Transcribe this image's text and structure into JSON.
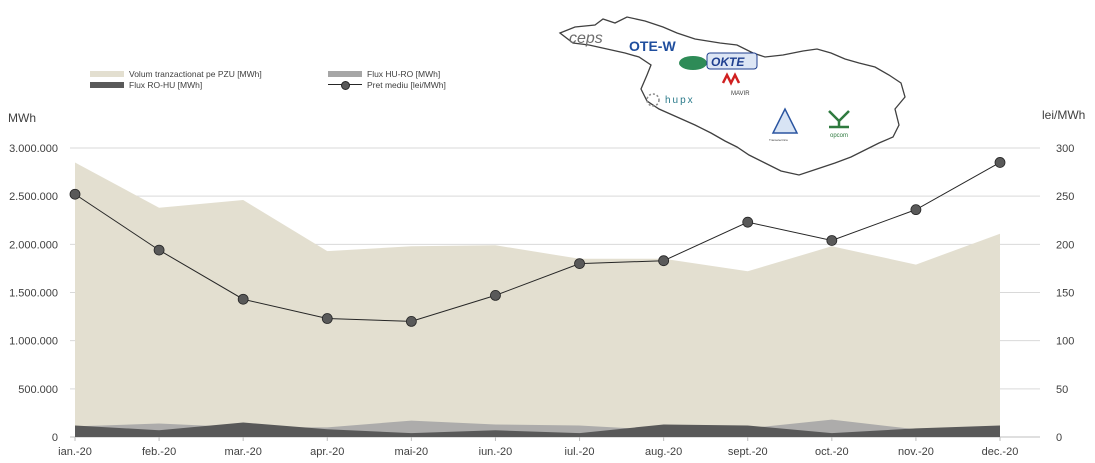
{
  "chart_data": {
    "type": "area",
    "categories": [
      "ian.-20",
      "feb.-20",
      "mar.-20",
      "apr.-20",
      "mai-20",
      "iun.-20",
      "iul.-20",
      "aug.-20",
      "sept.-20",
      "oct.-20",
      "nov.-20",
      "dec.-20"
    ],
    "series": [
      {
        "name": "Volum tranzactionat pe PZU [MWh]",
        "type": "area",
        "axis": "left",
        "color": "#e3dfd0",
        "values": [
          2850000,
          2380000,
          2460000,
          1930000,
          1980000,
          1990000,
          1850000,
          1850000,
          1720000,
          1980000,
          1790000,
          2110000
        ]
      },
      {
        "name": "Flux HU-RO [MWh]",
        "type": "area",
        "axis": "left",
        "color": "#a6a6a6",
        "values": [
          110000,
          140000,
          100000,
          100000,
          170000,
          130000,
          120000,
          70000,
          90000,
          180000,
          80000,
          100000
        ]
      },
      {
        "name": "Flux RO-HU [MWh]",
        "type": "area",
        "axis": "left",
        "color": "#595959",
        "values": [
          120000,
          70000,
          150000,
          80000,
          40000,
          70000,
          40000,
          130000,
          120000,
          40000,
          90000,
          120000
        ]
      },
      {
        "name": "Pret mediu [lei/MWh]",
        "type": "line",
        "axis": "right",
        "color": "#262626",
        "values": [
          252,
          194,
          143,
          123,
          120,
          147,
          180,
          183,
          223,
          204,
          236,
          285
        ]
      }
    ],
    "y_left": {
      "label": "MWh",
      "ticks": [
        "0",
        "500.000",
        "1.000.000",
        "1.500.000",
        "2.000.000",
        "2.500.000",
        "3.000.000"
      ],
      "ylim": [
        0,
        3000000
      ]
    },
    "y_right": {
      "label": "lei/MWh",
      "ticks": [
        "0",
        "50",
        "100",
        "150",
        "200",
        "250",
        "300"
      ],
      "ylim": [
        0,
        300
      ]
    },
    "legend_position": "top-left",
    "grid": true
  },
  "map_logos": {
    "ceps": "ceps",
    "ote": "OTE-W",
    "okte": "OKTE",
    "mavir": "MAVIR",
    "hupx": "hupx",
    "tel": "Transelectrica",
    "opcom": "opcom"
  }
}
